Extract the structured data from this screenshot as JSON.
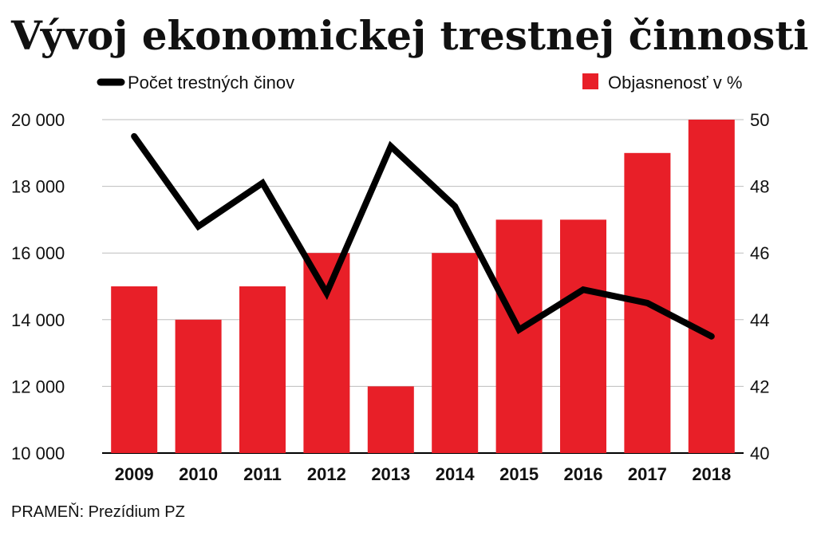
{
  "title": "Vývoj ekonomickej trestnej činnosti",
  "source": "PRAMEŇ: Prezídium PZ",
  "colors": {
    "bar": "#e81f28",
    "line": "#000000",
    "grid": "#bdbdbd",
    "text": "#111111"
  },
  "chart_data": {
    "type": "bar+line",
    "categories": [
      "2009",
      "2010",
      "2011",
      "2012",
      "2013",
      "2014",
      "2015",
      "2016",
      "2017",
      "2018"
    ],
    "series": [
      {
        "name": "Objasnenosť v %",
        "type": "bar",
        "axis": "right",
        "values": [
          45,
          44,
          45,
          46,
          42,
          46,
          47,
          47,
          49,
          50
        ]
      },
      {
        "name": "Počet trestných činov",
        "type": "line",
        "axis": "left",
        "values": [
          19500,
          16800,
          18100,
          14800,
          19200,
          17400,
          13700,
          14900,
          14500,
          13500
        ]
      }
    ],
    "left_axis": {
      "ylim": [
        10000,
        20000
      ],
      "ticks": [
        "10 000",
        "12 000",
        "14 000",
        "16 000",
        "18 000",
        "20 000"
      ],
      "tick_values": [
        10000,
        12000,
        14000,
        16000,
        18000,
        20000
      ]
    },
    "right_axis": {
      "ylim": [
        40,
        50
      ],
      "ticks": [
        "40",
        "42",
        "44",
        "46",
        "48",
        "50"
      ],
      "tick_values": [
        40,
        42,
        44,
        46,
        48,
        50
      ]
    },
    "grid": true,
    "legend": [
      "Počet trestných činov",
      "Objasnenosť v %"
    ]
  }
}
